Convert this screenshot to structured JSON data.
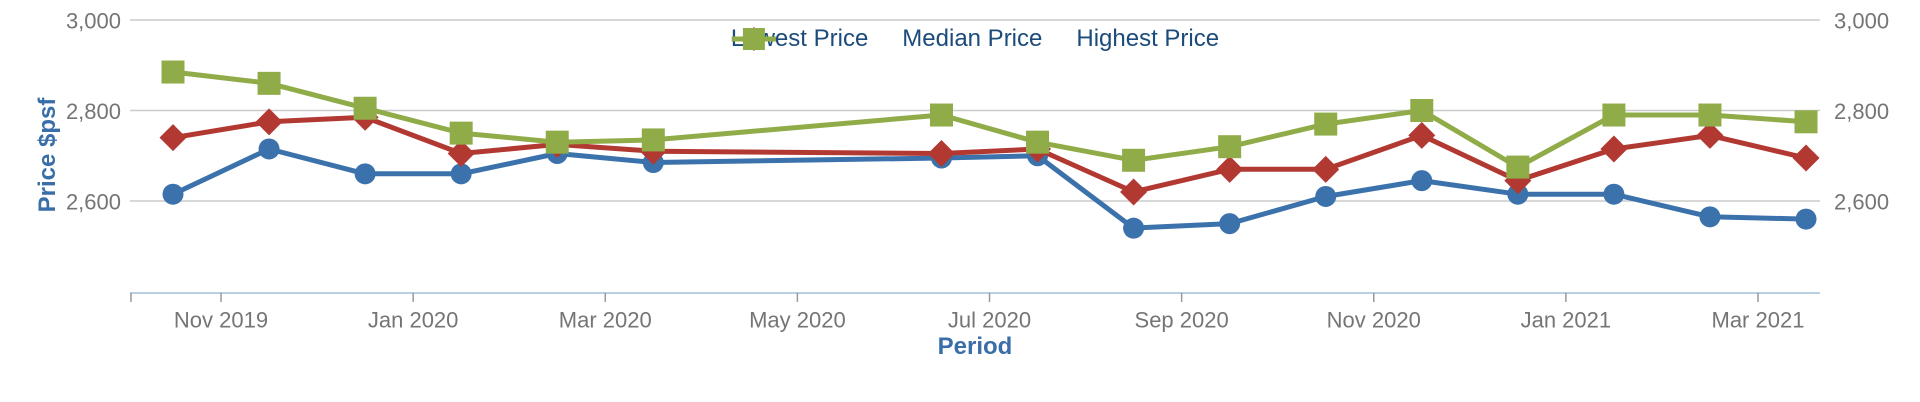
{
  "chart_data": {
    "type": "line",
    "title": "",
    "xlabel": "Period",
    "ylabel": "Price $psf",
    "legend_position": "top",
    "grid": "horizontal",
    "ylim": [
      2400,
      3000
    ],
    "y_tick_values": [
      3000,
      2800,
      2600
    ],
    "y_tick_labels": [
      "3,000",
      "2,800",
      "2,600"
    ],
    "y_axis_sides": [
      "left",
      "right"
    ],
    "x_tick_labels": [
      "Nov 2019",
      "Jan 2020",
      "Mar 2020",
      "May 2020",
      "Jul 2020",
      "Sep 2020",
      "Nov 2020",
      "Jan 2021",
      "Mar 2021"
    ],
    "categories": [
      "Oct 2019",
      "Nov 2019",
      "Dec 2019",
      "Jan 2020",
      "Feb 2020",
      "Mar 2020",
      "Apr 2020",
      "May 2020",
      "Jun 2020",
      "Jul 2020",
      "Aug 2020",
      "Sep 2020",
      "Oct 2020",
      "Nov 2020",
      "Dec 2020",
      "Jan 2021",
      "Feb 2021",
      "Mar 2021"
    ],
    "series": [
      {
        "name": "Lowest Price",
        "color": "#3c72ac",
        "marker": "circle",
        "values": [
          2615,
          2715,
          2660,
          2660,
          2705,
          2685,
          null,
          null,
          2695,
          2700,
          2540,
          2550,
          2610,
          2645,
          2615,
          2615,
          2565,
          2560
        ]
      },
      {
        "name": "Median Price",
        "color": "#b23931",
        "marker": "diamond",
        "values": [
          2740,
          2775,
          2785,
          2705,
          2725,
          2710,
          null,
          null,
          2705,
          2715,
          2620,
          2670,
          2670,
          2745,
          2645,
          2715,
          2745,
          2695
        ]
      },
      {
        "name": "Highest Price",
        "color": "#90ac49",
        "marker": "square",
        "values": [
          2885,
          2860,
          2805,
          2750,
          2730,
          2735,
          null,
          null,
          2790,
          2730,
          2690,
          2720,
          2770,
          2800,
          2675,
          2790,
          2790,
          2775
        ]
      }
    ],
    "colors": {
      "grid_line": "#cbcbcb",
      "axis_line": "#b9cfe4",
      "tick_mark": "#999999",
      "tick_text": "#757575",
      "legend_text": "#1b4b7b",
      "axis_title_text": "#3a6ea8"
    }
  }
}
